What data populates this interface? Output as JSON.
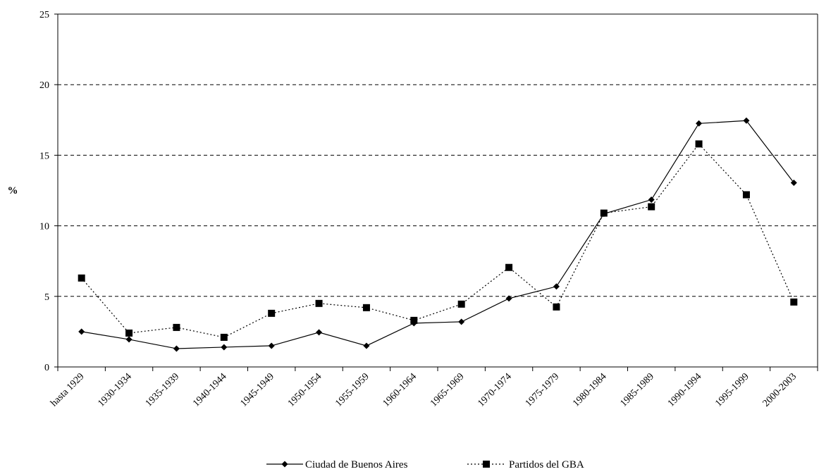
{
  "chart_data": {
    "type": "line",
    "title": "",
    "xlabel": "",
    "ylabel": "%",
    "ylim": [
      0,
      25
    ],
    "yticks": [
      0,
      5,
      10,
      15,
      20,
      25
    ],
    "grid": "horizontal dashed",
    "legend_position": "bottom",
    "categories": [
      "hasta 1929",
      "1930-1934",
      "1935-1939",
      "1940-1944",
      "1945-1949",
      "1950-1954",
      "1955-1959",
      "1960-1964",
      "1965-1969",
      "1970-1974",
      "1975-1979",
      "1980-1984",
      "1985-1989",
      "1990-1994",
      "1995-1999",
      "2000-2003"
    ],
    "series": [
      {
        "name": "Ciudad de Buenos Aires",
        "style": "solid",
        "marker": "diamond",
        "color": "#000000",
        "values": [
          2.5,
          1.95,
          1.3,
          1.4,
          1.5,
          2.45,
          1.5,
          3.1,
          3.2,
          4.85,
          5.7,
          10.85,
          11.85,
          17.25,
          17.45,
          13.05
        ]
      },
      {
        "name": "Partidos del GBA",
        "style": "dotted",
        "marker": "square",
        "color": "#000000",
        "values": [
          6.3,
          2.4,
          2.8,
          2.1,
          3.8,
          4.5,
          4.2,
          3.3,
          4.45,
          7.05,
          4.25,
          10.9,
          11.35,
          15.8,
          12.2,
          4.6
        ]
      }
    ]
  }
}
